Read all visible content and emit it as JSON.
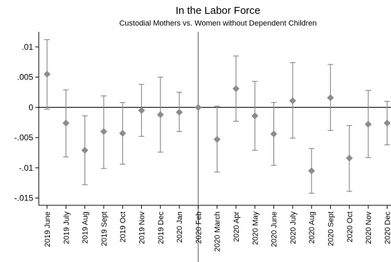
{
  "chart_data": {
    "type": "scatter",
    "title": "In the Labor Force",
    "subtitle": "Custodial Mothers vs. Women without Dependent Children",
    "categories": [
      "2019 June",
      "2019 July",
      "2019 Aug",
      "2019 Sept",
      "2019 Oct",
      "2019 Nov",
      "2019 Dec",
      "2020 Jan",
      "2020 Feb",
      "2020 March",
      "2020 Apr",
      "2020 May",
      "2020 June",
      "2020 July",
      "2020 Aug",
      "2020 Sept",
      "2020 Oct",
      "2020 Nov",
      "2020 Dec"
    ],
    "series": [
      {
        "estimate": [
          0.0055,
          -0.0026,
          -0.0071,
          -0.004,
          -0.0043,
          -0.0005,
          -0.0012,
          -0.0008,
          0.0,
          -0.0053,
          0.0031,
          -0.0014,
          -0.0044,
          0.0011,
          -0.0105,
          0.0016,
          -0.0084,
          -0.0028,
          -0.0026
        ],
        "ci_lower": [
          -0.0003,
          -0.0082,
          -0.0128,
          -0.0101,
          -0.0094,
          -0.0048,
          -0.0074,
          -0.004,
          0.0,
          -0.0107,
          -0.0023,
          -0.0071,
          -0.0096,
          -0.0051,
          -0.0142,
          -0.0038,
          -0.0139,
          -0.0083,
          -0.0062
        ],
        "ci_upper": [
          0.0112,
          0.0029,
          -0.0014,
          0.0019,
          0.0008,
          0.0038,
          0.005,
          0.0025,
          0.0,
          0.0002,
          0.0085,
          0.0043,
          0.0008,
          0.0074,
          -0.0068,
          0.0071,
          -0.003,
          0.0028,
          0.001
        ]
      }
    ],
    "yticks": [
      0.01,
      0.005,
      0,
      -0.005,
      -0.01,
      -0.015
    ],
    "ytick_labels": [
      ".01",
      ".005",
      "0",
      "-.005",
      "-.01",
      "-.015"
    ],
    "ylim": [
      -0.0162,
      0.0125
    ],
    "reference_line_y": 0,
    "reference_line_x": "2020 Feb",
    "grid": false,
    "colors": {
      "marker": "#8c8c8c",
      "errorbar": "#8c8c8c",
      "axis": "#000000"
    }
  }
}
